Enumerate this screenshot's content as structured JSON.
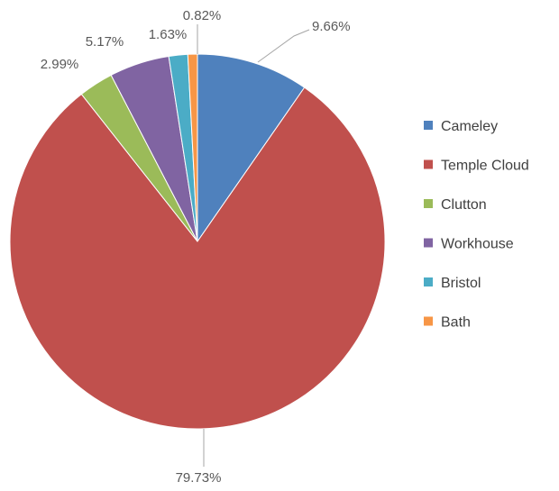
{
  "chart_data": {
    "type": "pie",
    "title": "",
    "categories": [
      "Cameley",
      "Temple Cloud",
      "Clutton",
      "Workhouse",
      "Bristol",
      "Bath"
    ],
    "values": [
      9.66,
      79.73,
      2.99,
      5.17,
      1.63,
      0.82
    ],
    "data_labels": [
      "9.66%",
      "79.73%",
      "2.99%",
      "5.17%",
      "1.63%",
      "0.82%"
    ],
    "colors": [
      "#4f81bd",
      "#c0504d",
      "#9bbb59",
      "#8064a2",
      "#4bacc6",
      "#f79646"
    ],
    "start_angle_deg": 0,
    "direction": "clockwise",
    "legend_position": "right"
  }
}
